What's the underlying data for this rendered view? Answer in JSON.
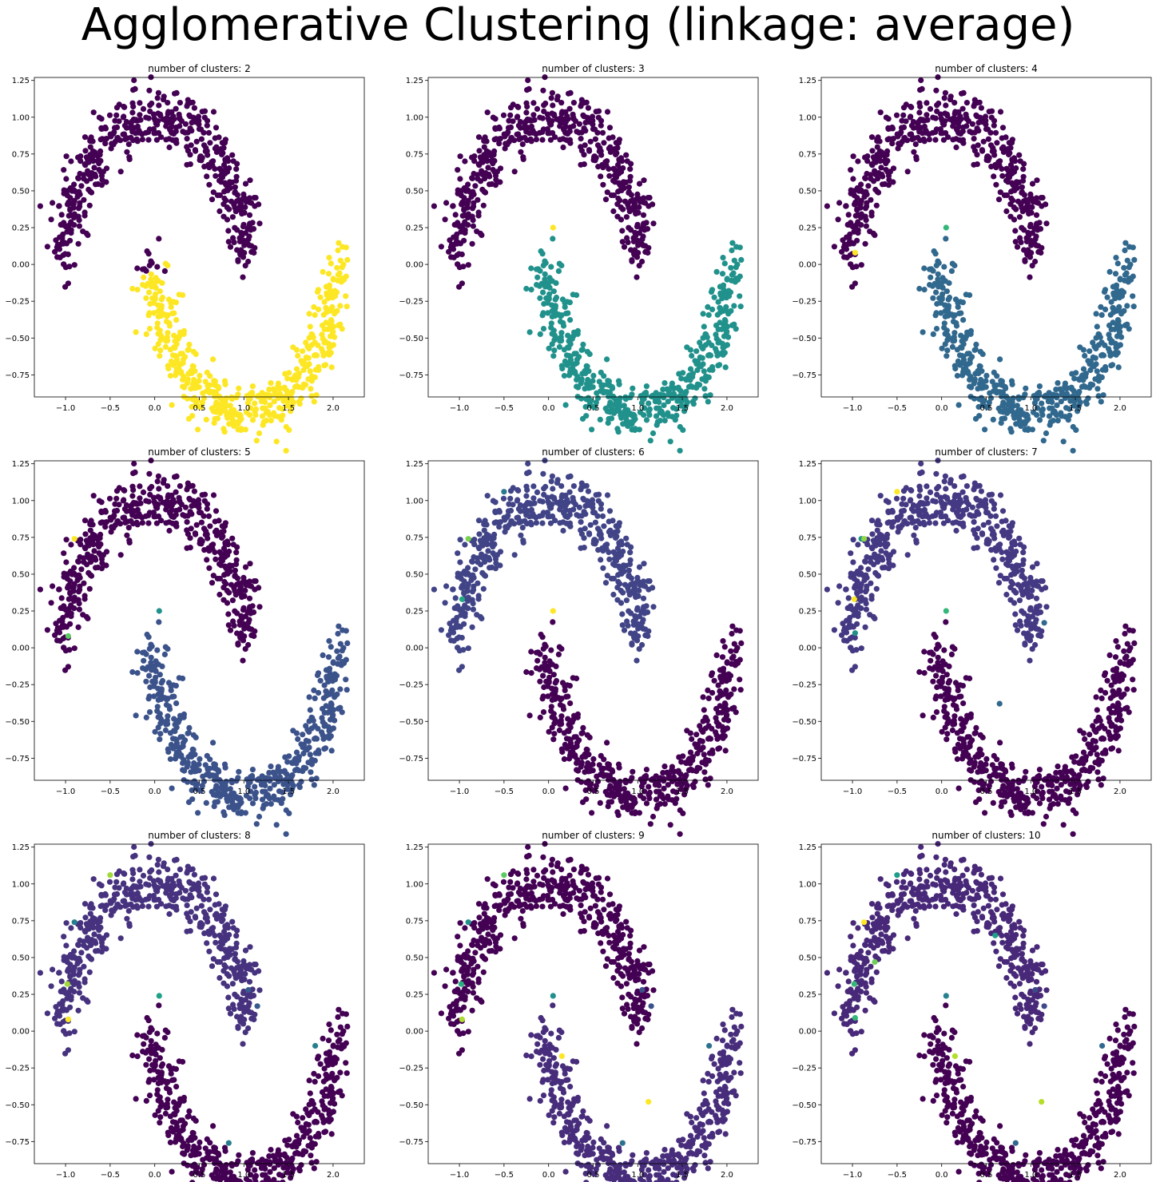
{
  "suptitle": "Agglomerative Clustering (linkage: average)",
  "palette": {
    "viridis": [
      "#440154",
      "#482878",
      "#3e4989",
      "#31688e",
      "#26828e",
      "#1f9e89",
      "#35b779",
      "#6ece58",
      "#b5de2b",
      "#fde725"
    ]
  },
  "chart_data": [
    {
      "type": "scatter",
      "title": "number of clusters: 2",
      "n_clusters": 2,
      "xlim": [
        -1.35,
        2.35
      ],
      "ylim": [
        -0.9,
        1.27
      ],
      "xticks": [
        -1.0,
        -0.5,
        0.0,
        0.5,
        1.0,
        1.5,
        2.0
      ],
      "yticks": [
        -0.75,
        -0.5,
        -0.25,
        0.0,
        0.25,
        0.5,
        0.75,
        1.0,
        1.25
      ],
      "series": [
        {
          "label": 0,
          "color": "#440154",
          "region": "upper moon and left end of lower moon"
        },
        {
          "label": 1,
          "color": "#fde725",
          "region": "lower moon"
        }
      ]
    },
    {
      "type": "scatter",
      "title": "number of clusters: 3",
      "n_clusters": 3,
      "xlim": [
        -1.35,
        2.35
      ],
      "ylim": [
        -0.9,
        1.27
      ],
      "xticks": [
        -1.0,
        -0.5,
        0.0,
        0.5,
        1.0,
        1.5,
        2.0
      ],
      "yticks": [
        -0.75,
        -0.5,
        -0.25,
        0.0,
        0.25,
        0.5,
        0.75,
        1.0,
        1.25
      ],
      "series": [
        {
          "label": 0,
          "color": "#440154",
          "region": "upper moon"
        },
        {
          "label": 1,
          "color": "#21918c",
          "region": "lower moon"
        },
        {
          "label": 2,
          "color": "#fde725",
          "points": [
            [
              0.05,
              0.25
            ]
          ]
        }
      ]
    },
    {
      "type": "scatter",
      "title": "number of clusters: 4",
      "n_clusters": 4,
      "xlim": [
        -1.35,
        2.35
      ],
      "ylim": [
        -0.9,
        1.27
      ],
      "xticks": [
        -1.0,
        -0.5,
        0.0,
        0.5,
        1.0,
        1.5,
        2.0
      ],
      "yticks": [
        -0.75,
        -0.5,
        -0.25,
        0.0,
        0.25,
        0.5,
        0.75,
        1.0,
        1.25
      ],
      "series": [
        {
          "label": 0,
          "color": "#440154",
          "region": "upper moon"
        },
        {
          "label": 1,
          "color": "#31688e",
          "region": "lower moon"
        },
        {
          "label": 2,
          "color": "#35b779",
          "points": [
            [
              0.05,
              0.25
            ]
          ]
        },
        {
          "label": 3,
          "color": "#fde725",
          "points": [
            [
              -0.97,
              0.08
            ]
          ]
        }
      ]
    },
    {
      "type": "scatter",
      "title": "number of clusters: 5",
      "n_clusters": 5,
      "xlim": [
        -1.35,
        2.35
      ],
      "ylim": [
        -0.9,
        1.27
      ],
      "xticks": [
        -1.0,
        -0.5,
        0.0,
        0.5,
        1.0,
        1.5,
        2.0
      ],
      "yticks": [
        -0.75,
        -0.5,
        -0.25,
        0.0,
        0.25,
        0.5,
        0.75,
        1.0,
        1.25
      ],
      "series": [
        {
          "label": 0,
          "color": "#440154",
          "region": "upper moon"
        },
        {
          "label": 1,
          "color": "#3b528b",
          "region": "lower moon"
        },
        {
          "label": 2,
          "color": "#21918c",
          "points": [
            [
              0.05,
              0.25
            ]
          ]
        },
        {
          "label": 3,
          "color": "#5ec962",
          "points": [
            [
              -0.97,
              0.08
            ]
          ]
        },
        {
          "label": 4,
          "color": "#fde725",
          "points": [
            [
              -0.9,
              0.74
            ]
          ]
        }
      ]
    },
    {
      "type": "scatter",
      "title": "number of clusters: 6",
      "n_clusters": 6,
      "xlim": [
        -1.35,
        2.35
      ],
      "ylim": [
        -0.9,
        1.27
      ],
      "xticks": [
        -1.0,
        -0.5,
        0.0,
        0.5,
        1.0,
        1.5,
        2.0
      ],
      "yticks": [
        -0.75,
        -0.5,
        -0.25,
        0.0,
        0.25,
        0.5,
        0.75,
        1.0,
        1.25
      ],
      "series": [
        {
          "label": 0,
          "color": "#440154",
          "region": "lower moon"
        },
        {
          "label": 1,
          "color": "#414487",
          "region": "upper moon"
        },
        {
          "label": 2,
          "color": "#2a788e",
          "points": [
            [
              -0.5,
              1.06
            ]
          ]
        },
        {
          "label": 3,
          "color": "#22a884",
          "points": [
            [
              -0.97,
              0.33
            ]
          ]
        },
        {
          "label": 4,
          "color": "#7ad151",
          "points": [
            [
              -0.9,
              0.74
            ]
          ]
        },
        {
          "label": 5,
          "color": "#fde725",
          "points": [
            [
              0.05,
              0.25
            ]
          ]
        }
      ]
    },
    {
      "type": "scatter",
      "title": "number of clusters: 7",
      "n_clusters": 7,
      "xlim": [
        -1.35,
        2.35
      ],
      "ylim": [
        -0.9,
        1.27
      ],
      "xticks": [
        -1.0,
        -0.5,
        0.0,
        0.5,
        1.0,
        1.5,
        2.0
      ],
      "yticks": [
        -0.75,
        -0.5,
        -0.25,
        0.0,
        0.25,
        0.5,
        0.75,
        1.0,
        1.25
      ],
      "series": [
        {
          "label": 0,
          "color": "#440154",
          "region": "lower moon"
        },
        {
          "label": 1,
          "color": "#443983",
          "region": "upper moon"
        },
        {
          "label": 2,
          "color": "#31688e",
          "points": [
            [
              1.15,
              0.17
            ],
            [
              0.65,
              -0.38
            ]
          ]
        },
        {
          "label": 3,
          "color": "#21918c",
          "points": [
            [
              -0.9,
              0.74
            ],
            [
              -0.97,
              0.1
            ]
          ]
        },
        {
          "label": 4,
          "color": "#35b779",
          "points": [
            [
              0.05,
              0.25
            ]
          ]
        },
        {
          "label": 5,
          "color": "#90d743",
          "points": [
            [
              -0.87,
              0.74
            ]
          ]
        },
        {
          "label": 6,
          "color": "#fde725",
          "points": [
            [
              -0.5,
              1.06
            ],
            [
              -0.98,
              0.33
            ]
          ]
        }
      ]
    },
    {
      "type": "scatter",
      "title": "number of clusters: 8",
      "n_clusters": 8,
      "xlim": [
        -1.35,
        2.35
      ],
      "ylim": [
        -0.9,
        1.27
      ],
      "xticks": [
        -1.0,
        -0.5,
        0.0,
        0.5,
        1.0,
        1.5,
        2.0
      ],
      "yticks": [
        -0.75,
        -0.5,
        -0.25,
        0.0,
        0.25,
        0.5,
        0.75,
        1.0,
        1.25
      ],
      "series": [
        {
          "label": 0,
          "color": "#440154",
          "region": "lower moon"
        },
        {
          "label": 1,
          "color": "#46327e",
          "region": "upper moon"
        },
        {
          "label": 2,
          "color": "#365c8d",
          "points": [
            [
              1.15,
              0.17
            ],
            [
              1.05,
              0.28
            ]
          ]
        },
        {
          "label": 3,
          "color": "#277f8e",
          "points": [
            [
              0.83,
              -0.76
            ],
            [
              -0.9,
              0.74
            ],
            [
              1.8,
              -0.1
            ]
          ]
        },
        {
          "label": 4,
          "color": "#1fa187",
          "points": [
            [
              0.05,
              0.24
            ]
          ]
        },
        {
          "label": 5,
          "color": "#4ac16d",
          "points": [
            [
              -0.97,
              0.08
            ]
          ]
        },
        {
          "label": 6,
          "color": "#a0da39",
          "points": [
            [
              -0.5,
              1.06
            ],
            [
              -0.98,
              0.32
            ]
          ]
        },
        {
          "label": 7,
          "color": "#fde725",
          "points": [
            [
              -0.97,
              0.08
            ]
          ]
        }
      ]
    },
    {
      "type": "scatter",
      "title": "number of clusters: 9",
      "n_clusters": 9,
      "xlim": [
        -1.35,
        2.35
      ],
      "ylim": [
        -0.9,
        1.27
      ],
      "xticks": [
        -1.0,
        -0.5,
        0.0,
        0.5,
        1.0,
        1.5,
        2.0
      ],
      "yticks": [
        -0.75,
        -0.5,
        -0.25,
        0.0,
        0.25,
        0.5,
        0.75,
        1.0,
        1.25
      ],
      "series": [
        {
          "label": 0,
          "color": "#440154",
          "region": "upper moon"
        },
        {
          "label": 1,
          "color": "#472d7b",
          "region": "lower moon"
        },
        {
          "label": 2,
          "color": "#3b528b",
          "points": [
            [
              1.15,
              0.17
            ],
            [
              1.05,
              0.28
            ]
          ]
        },
        {
          "label": 3,
          "color": "#2c728e",
          "points": [
            [
              0.83,
              -0.76
            ],
            [
              1.8,
              -0.1
            ]
          ]
        },
        {
          "label": 4,
          "color": "#21918c",
          "points": [
            [
              -0.9,
              0.74
            ],
            [
              0.05,
              0.24
            ]
          ]
        },
        {
          "label": 5,
          "color": "#28ae80",
          "points": [
            [
              -0.98,
              0.32
            ]
          ]
        },
        {
          "label": 6,
          "color": "#5ec962",
          "points": [
            [
              -0.5,
              1.06
            ]
          ]
        },
        {
          "label": 7,
          "color": "#addc30",
          "points": [
            [
              -0.97,
              0.08
            ]
          ]
        },
        {
          "label": 8,
          "color": "#fde725",
          "points": [
            [
              0.15,
              -0.17
            ],
            [
              1.12,
              -0.48
            ]
          ]
        }
      ]
    },
    {
      "type": "scatter",
      "title": "number of clusters: 10",
      "n_clusters": 10,
      "xlim": [
        -1.35,
        2.35
      ],
      "ylim": [
        -0.9,
        1.27
      ],
      "xticks": [
        -1.0,
        -0.5,
        0.0,
        0.5,
        1.0,
        1.5,
        2.0
      ],
      "yticks": [
        -0.75,
        -0.5,
        -0.25,
        0.0,
        0.25,
        0.5,
        0.75,
        1.0,
        1.25
      ],
      "series": [
        {
          "label": 0,
          "color": "#440154",
          "region": "lower moon"
        },
        {
          "label": 1,
          "color": "#482878",
          "region": "upper moon"
        },
        {
          "label": 2,
          "color": "#3e4989",
          "points": [
            [
              1.05,
              0.28
            ],
            [
              1.15,
              0.17
            ]
          ]
        },
        {
          "label": 3,
          "color": "#31688e",
          "points": [
            [
              0.83,
              -0.76
            ],
            [
              1.8,
              -0.1
            ]
          ]
        },
        {
          "label": 4,
          "color": "#26828e",
          "points": [
            [
              0.05,
              0.24
            ]
          ]
        },
        {
          "label": 5,
          "color": "#1f9e89",
          "points": [
            [
              0.6,
              0.65
            ],
            [
              -0.5,
              1.06
            ]
          ]
        },
        {
          "label": 6,
          "color": "#35b779",
          "points": [
            [
              -0.98,
              0.32
            ],
            [
              -0.97,
              0.09
            ]
          ]
        },
        {
          "label": 7,
          "color": "#6ece58",
          "points": [
            [
              -0.75,
              0.47
            ]
          ]
        },
        {
          "label": 8,
          "color": "#b5de2b",
          "points": [
            [
              0.15,
              -0.17
            ],
            [
              1.12,
              -0.48
            ]
          ]
        },
        {
          "label": 9,
          "color": "#fde725",
          "points": [
            [
              -0.87,
              0.74
            ]
          ]
        }
      ]
    }
  ]
}
